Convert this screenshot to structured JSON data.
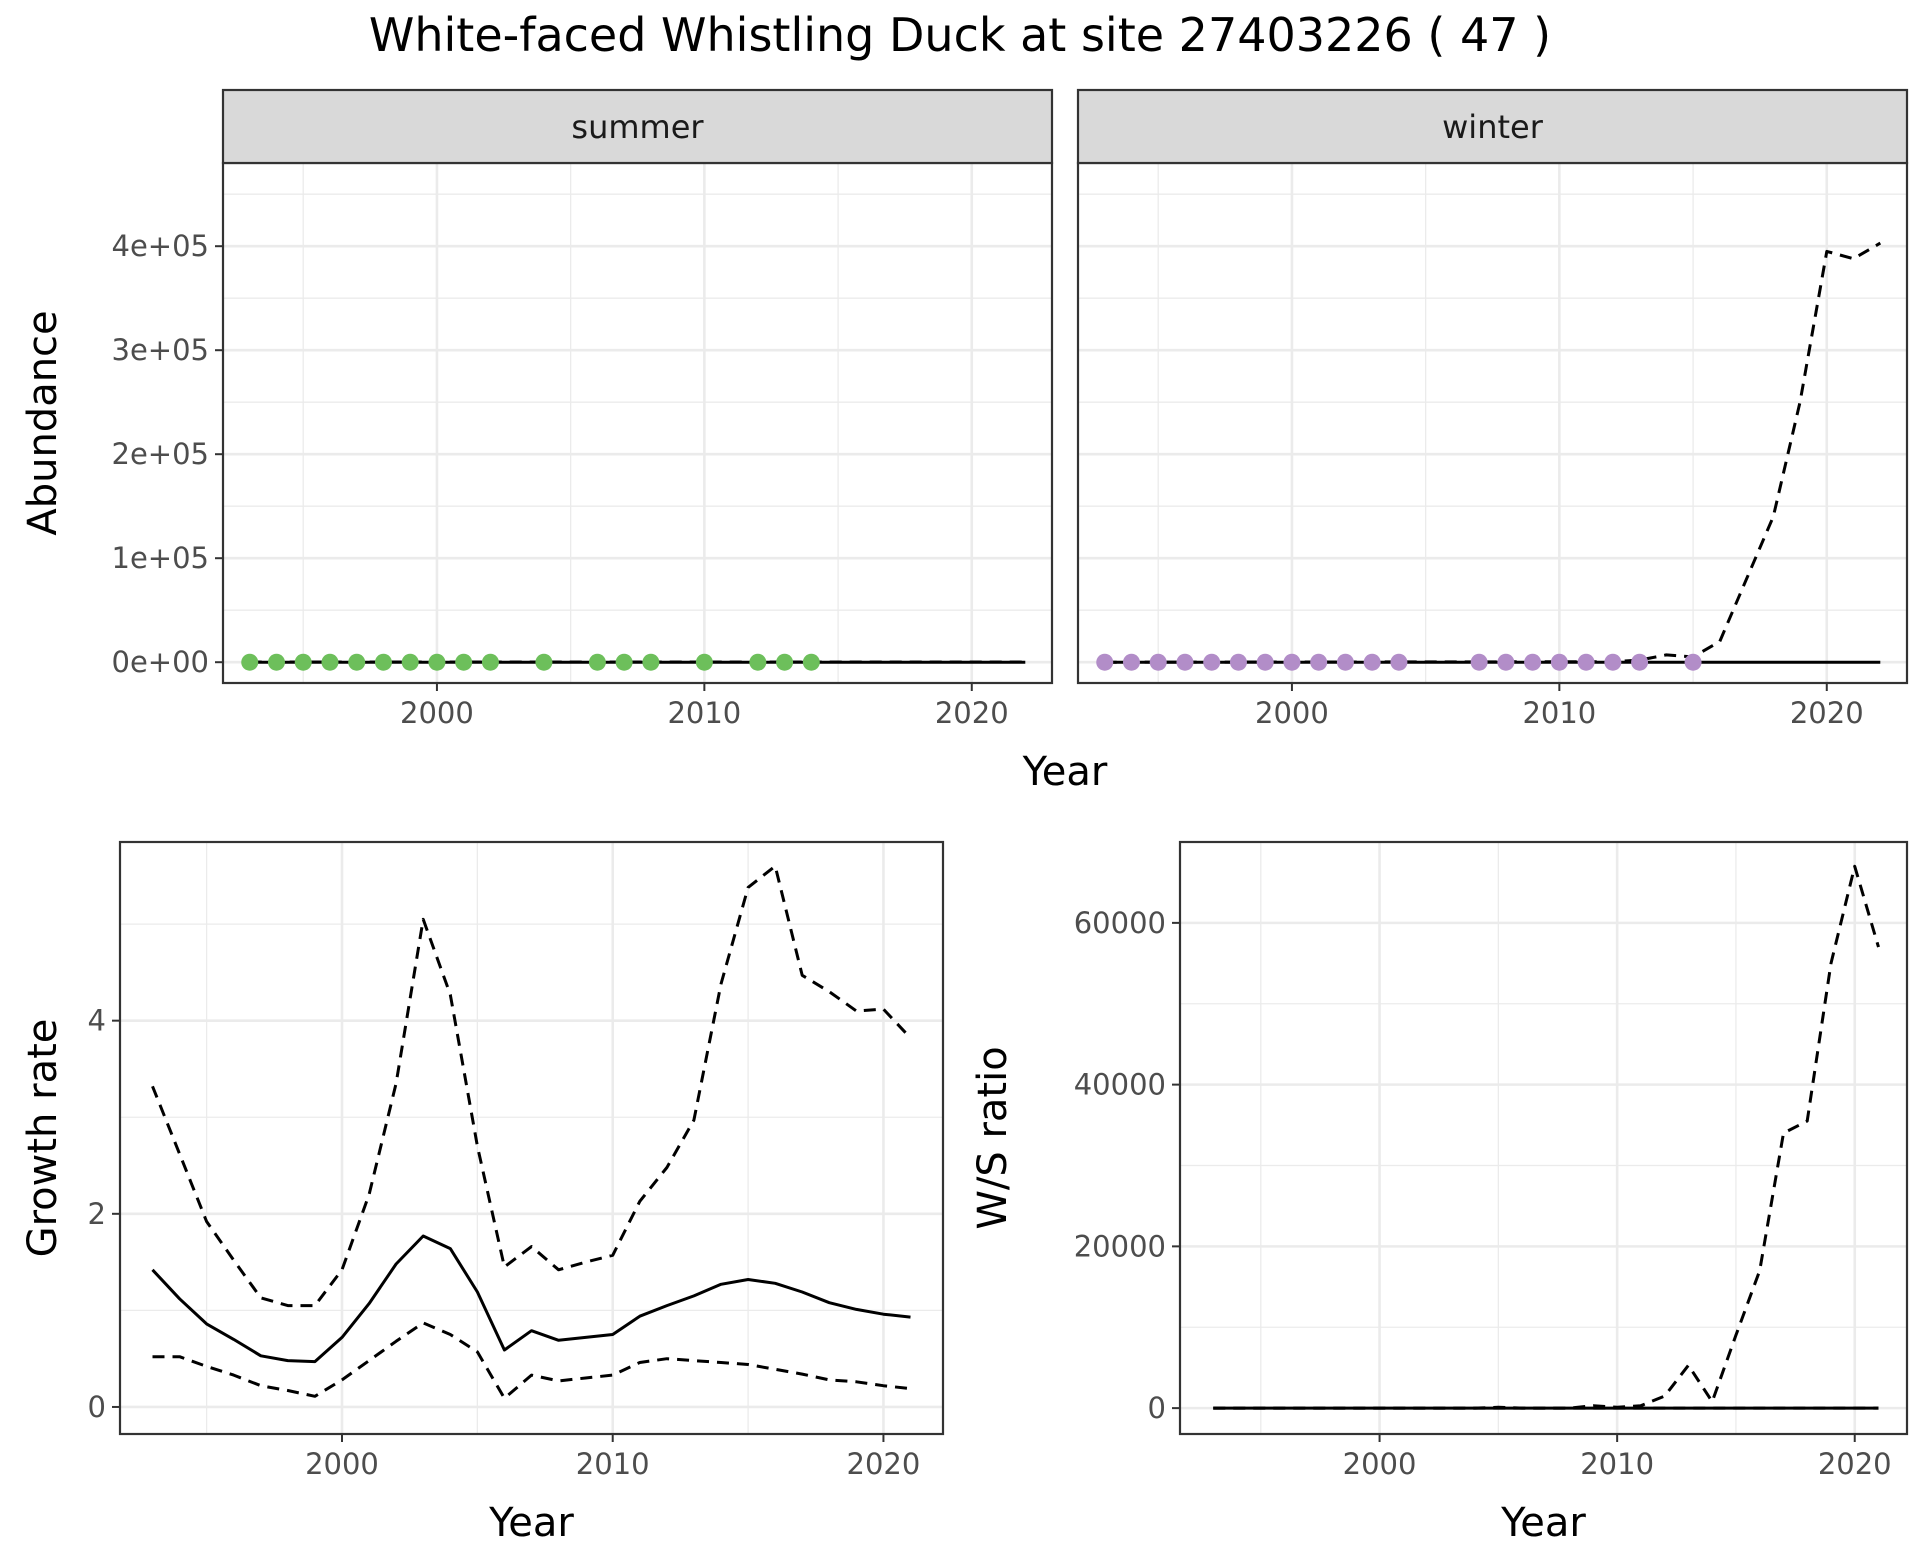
{
  "title": "White-faced Whistling Duck at site 27403226 ( 47 )",
  "colors": {
    "summer": "#6dbf5b",
    "winter": "#b28dc8",
    "line": "#000000",
    "grid": "#ebebeb",
    "strip": "#d9d9d9"
  },
  "chart_data": [
    {
      "type": "line",
      "panels": [
        "summer",
        "winter"
      ],
      "xlabel": "Year",
      "ylabel": "Abundance",
      "xlim": [
        1992,
        2023
      ],
      "ylim": [
        -20000,
        480000
      ],
      "xticks": [
        2000,
        2010,
        2020
      ],
      "yticks": [
        0,
        100000,
        200000,
        300000,
        400000
      ],
      "ytick_labels": [
        "0e+00",
        "1e+05",
        "2e+05",
        "3e+05",
        "4e+05"
      ],
      "grid": true,
      "summer": {
        "points_x": [
          1993,
          1994,
          1995,
          1996,
          1997,
          1998,
          1999,
          2000,
          2001,
          2002,
          2004,
          2006,
          2007,
          2008,
          2010,
          2012,
          2013,
          2014
        ],
        "points_y": [
          0,
          0,
          0,
          0,
          0,
          0,
          0,
          0,
          0,
          0,
          0,
          0,
          0,
          0,
          0,
          0,
          0,
          0
        ],
        "fit_x": [
          1993,
          2022
        ],
        "fit_y": [
          0,
          0
        ],
        "upper_x": [
          1993,
          2022
        ],
        "upper_y": [
          200,
          200
        ]
      },
      "winter": {
        "points_x": [
          1993,
          1994,
          1995,
          1996,
          1997,
          1998,
          1999,
          2000,
          2001,
          2002,
          2003,
          2004,
          2007,
          2008,
          2009,
          2010,
          2011,
          2012,
          2013,
          2015
        ],
        "points_y": [
          0,
          0,
          0,
          0,
          0,
          0,
          0,
          0,
          0,
          0,
          0,
          0,
          0,
          0,
          0,
          0,
          0,
          0,
          0,
          0
        ],
        "fit_x": [
          1993,
          2022
        ],
        "fit_y": [
          0,
          0
        ],
        "upper_x": [
          1993,
          2012,
          2013,
          2014,
          2015,
          2016,
          2017,
          2018,
          2019,
          2020,
          2021,
          2022
        ],
        "upper_y": [
          0,
          500,
          2000,
          7000,
          5000,
          20000,
          80000,
          140000,
          250000,
          395000,
          388000,
          403000
        ]
      }
    },
    {
      "type": "line",
      "xlabel": "Year",
      "ylabel": "Growth rate",
      "xlim": [
        1991.8,
        2022.2
      ],
      "ylim": [
        -0.28,
        5.85
      ],
      "xticks": [
        2000,
        2010,
        2020
      ],
      "yticks": [
        0,
        2,
        4
      ],
      "grid": true,
      "x": [
        1993,
        1994,
        1995,
        1996,
        1997,
        1998,
        1999,
        2000,
        2001,
        2002,
        2003,
        2004,
        2005,
        2006,
        2007,
        2008,
        2009,
        2010,
        2011,
        2012,
        2013,
        2014,
        2015,
        2016,
        2017,
        2018,
        2019,
        2020,
        2021
      ],
      "series": [
        {
          "values": [
            1.42,
            1.12,
            0.86,
            0.7,
            0.53,
            0.48,
            0.47,
            0.72,
            1.07,
            1.48,
            1.77,
            1.64,
            1.19,
            0.59,
            0.79,
            0.69,
            0.72,
            0.75,
            0.94,
            1.05,
            1.15,
            1.27,
            1.32,
            1.28,
            1.19,
            1.08,
            1.01,
            0.96,
            0.93
          ],
          "style": "solid"
        },
        {
          "values": [
            3.32,
            2.62,
            1.92,
            1.52,
            1.13,
            1.05,
            1.05,
            1.42,
            2.2,
            3.35,
            5.05,
            4.27,
            2.7,
            1.45,
            1.66,
            1.42,
            1.5,
            1.57,
            2.13,
            2.48,
            2.97,
            4.38,
            5.38,
            5.6,
            4.47,
            4.3,
            4.1,
            4.12,
            3.82
          ],
          "style": "dashed"
        },
        {
          "values": [
            0.52,
            0.52,
            0.42,
            0.33,
            0.22,
            0.17,
            0.11,
            0.28,
            0.48,
            0.68,
            0.87,
            0.75,
            0.57,
            0.09,
            0.33,
            0.27,
            0.3,
            0.33,
            0.46,
            0.5,
            0.48,
            0.46,
            0.44,
            0.39,
            0.34,
            0.28,
            0.26,
            0.22,
            0.19
          ],
          "style": "dashed"
        }
      ]
    },
    {
      "type": "line",
      "xlabel": "Year",
      "ylabel": "W/S ratio",
      "xlim": [
        1991.6,
        2022.2
      ],
      "ylim": [
        -3200,
        70000
      ],
      "xticks": [
        2000,
        2010,
        2020
      ],
      "yticks": [
        0,
        20000,
        40000,
        60000
      ],
      "grid": true,
      "x": [
        1993,
        1994,
        1995,
        1996,
        1997,
        1998,
        1999,
        2000,
        2001,
        2002,
        2003,
        2004,
        2005,
        2006,
        2007,
        2008,
        2009,
        2010,
        2011,
        2012,
        2013,
        2014,
        2015,
        2016,
        2017,
        2018,
        2019,
        2020,
        2021
      ],
      "series": [
        {
          "values": [
            0,
            0,
            0,
            0,
            0,
            0,
            0,
            0,
            0,
            0,
            0,
            0,
            0,
            0,
            0,
            0,
            0,
            0,
            0,
            0,
            0,
            0,
            0,
            0,
            0,
            0,
            0,
            0,
            0
          ],
          "style": "solid"
        },
        {
          "values": [
            0,
            0,
            0,
            0,
            0,
            0,
            0,
            0,
            0,
            0,
            0,
            0,
            100,
            0,
            0,
            0,
            300,
            100,
            300,
            1500,
            5300,
            800,
            9000,
            17000,
            34000,
            35500,
            55000,
            67000,
            57000
          ],
          "style": "dashed"
        },
        {
          "values": [
            0,
            0,
            0,
            0,
            0,
            0,
            0,
            0,
            0,
            0,
            0,
            0,
            0,
            0,
            0,
            0,
            0,
            0,
            0,
            0,
            0,
            0,
            0,
            0,
            0,
            0,
            0,
            0,
            0
          ],
          "style": "dashed"
        }
      ]
    }
  ]
}
